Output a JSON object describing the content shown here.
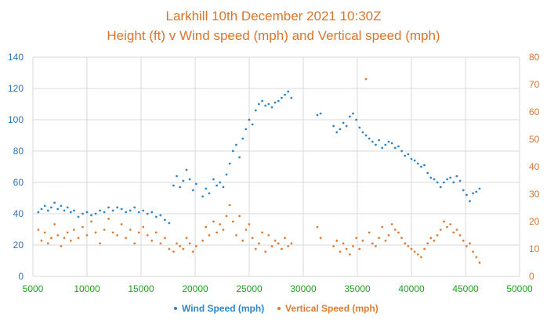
{
  "chart_data": {
    "type": "scatter",
    "title": "Larkhill 10th December 2021 10:30Z",
    "subtitle": "Height (ft) v Wind speed (mph) and Vertical speed (mph)",
    "xlabel": "",
    "ylabel": "",
    "y2label": "",
    "xlim": [
      5000,
      50000
    ],
    "ylim": [
      0,
      140
    ],
    "y2lim": [
      0,
      80
    ],
    "x_ticks": [
      5000,
      10000,
      15000,
      20000,
      25000,
      30000,
      35000,
      40000,
      45000,
      50000
    ],
    "y_ticks": [
      0,
      20,
      40,
      60,
      80,
      100,
      120,
      140
    ],
    "y2_ticks": [
      0,
      10,
      20,
      30,
      40,
      50,
      60,
      70,
      80
    ],
    "grid": true,
    "legend_position": "bottom",
    "series": [
      {
        "name": "Wind Speed (mph)",
        "axis": "left",
        "color": "#2E86C8",
        "points": [
          [
            5500,
            41
          ],
          [
            5800,
            43
          ],
          [
            6100,
            45
          ],
          [
            6400,
            42
          ],
          [
            6700,
            44
          ],
          [
            7000,
            47
          ],
          [
            7300,
            43
          ],
          [
            7600,
            45
          ],
          [
            7900,
            42
          ],
          [
            8200,
            44
          ],
          [
            8500,
            41
          ],
          [
            8800,
            42
          ],
          [
            9200,
            38
          ],
          [
            9600,
            40
          ],
          [
            10000,
            41
          ],
          [
            10400,
            39
          ],
          [
            10800,
            40
          ],
          [
            11200,
            42
          ],
          [
            11600,
            41
          ],
          [
            12000,
            44
          ],
          [
            12400,
            42
          ],
          [
            12800,
            44
          ],
          [
            13200,
            43
          ],
          [
            13600,
            41
          ],
          [
            14000,
            42
          ],
          [
            14400,
            44
          ],
          [
            14800,
            41
          ],
          [
            15200,
            42
          ],
          [
            15600,
            40
          ],
          [
            16000,
            41
          ],
          [
            16400,
            38
          ],
          [
            16800,
            39
          ],
          [
            17200,
            36
          ],
          [
            17600,
            34
          ],
          [
            18000,
            58
          ],
          [
            18300,
            64
          ],
          [
            18600,
            57
          ],
          [
            18900,
            61
          ],
          [
            19200,
            68
          ],
          [
            19500,
            62
          ],
          [
            19800,
            55
          ],
          [
            20100,
            59
          ],
          [
            20700,
            51
          ],
          [
            21000,
            56
          ],
          [
            21300,
            53
          ],
          [
            21700,
            62
          ],
          [
            22000,
            58
          ],
          [
            22300,
            60
          ],
          [
            22600,
            57
          ],
          [
            22900,
            65
          ],
          [
            23200,
            72
          ],
          [
            23500,
            80
          ],
          [
            23800,
            84
          ],
          [
            24100,
            76
          ],
          [
            24400,
            88
          ],
          [
            24700,
            94
          ],
          [
            25000,
            100
          ],
          [
            25300,
            97
          ],
          [
            25600,
            106
          ],
          [
            25900,
            110
          ],
          [
            26200,
            112
          ],
          [
            26500,
            109
          ],
          [
            26800,
            110
          ],
          [
            27100,
            108
          ],
          [
            27400,
            111
          ],
          [
            27700,
            112
          ],
          [
            28000,
            114
          ],
          [
            28300,
            116
          ],
          [
            28600,
            118
          ],
          [
            28900,
            114
          ],
          [
            31300,
            103
          ],
          [
            31600,
            104
          ],
          [
            32800,
            96
          ],
          [
            33100,
            92
          ],
          [
            33400,
            94
          ],
          [
            33700,
            98
          ],
          [
            34000,
            96
          ],
          [
            34300,
            102
          ],
          [
            34600,
            104
          ],
          [
            34900,
            100
          ],
          [
            35200,
            95
          ],
          [
            35500,
            92
          ],
          [
            35800,
            90
          ],
          [
            36100,
            88
          ],
          [
            36400,
            86
          ],
          [
            36700,
            84
          ],
          [
            37000,
            87
          ],
          [
            37300,
            82
          ],
          [
            37600,
            84
          ],
          [
            37900,
            86
          ],
          [
            38200,
            85
          ],
          [
            38500,
            82
          ],
          [
            38800,
            83
          ],
          [
            39100,
            80
          ],
          [
            39400,
            77
          ],
          [
            39700,
            78
          ],
          [
            40000,
            75
          ],
          [
            40300,
            74
          ],
          [
            40600,
            72
          ],
          [
            40900,
            70
          ],
          [
            41200,
            71
          ],
          [
            41500,
            66
          ],
          [
            41800,
            63
          ],
          [
            42100,
            62
          ],
          [
            42400,
            60
          ],
          [
            42700,
            57
          ],
          [
            43000,
            60
          ],
          [
            43300,
            62
          ],
          [
            43600,
            63
          ],
          [
            43900,
            60
          ],
          [
            44200,
            64
          ],
          [
            44500,
            61
          ],
          [
            44800,
            55
          ],
          [
            45100,
            52
          ],
          [
            45400,
            48
          ],
          [
            45700,
            53
          ],
          [
            46000,
            54
          ],
          [
            46300,
            56
          ]
        ]
      },
      {
        "name": "Vertical Speed (mph)",
        "axis": "right",
        "color": "#E07B30",
        "points": [
          [
            5500,
            17
          ],
          [
            5800,
            13
          ],
          [
            6100,
            16
          ],
          [
            6400,
            12
          ],
          [
            6700,
            14
          ],
          [
            7000,
            19
          ],
          [
            7300,
            15
          ],
          [
            7600,
            11
          ],
          [
            7900,
            14
          ],
          [
            8200,
            16
          ],
          [
            8500,
            13
          ],
          [
            8800,
            17
          ],
          [
            9200,
            14
          ],
          [
            9600,
            18
          ],
          [
            10000,
            15
          ],
          [
            10400,
            20
          ],
          [
            10800,
            16
          ],
          [
            11200,
            12
          ],
          [
            11600,
            17
          ],
          [
            12000,
            21
          ],
          [
            12400,
            16
          ],
          [
            12800,
            15
          ],
          [
            13200,
            19
          ],
          [
            13600,
            14
          ],
          [
            14000,
            17
          ],
          [
            14400,
            12
          ],
          [
            14800,
            16
          ],
          [
            15200,
            18
          ],
          [
            15600,
            15
          ],
          [
            16000,
            13
          ],
          [
            16400,
            16
          ],
          [
            16800,
            12
          ],
          [
            17200,
            14
          ],
          [
            17600,
            10
          ],
          [
            18000,
            9
          ],
          [
            18300,
            12
          ],
          [
            18600,
            11
          ],
          [
            18900,
            10
          ],
          [
            19200,
            14
          ],
          [
            19500,
            12
          ],
          [
            19800,
            9
          ],
          [
            20100,
            11
          ],
          [
            20700,
            13
          ],
          [
            21000,
            18
          ],
          [
            21300,
            15
          ],
          [
            21700,
            20
          ],
          [
            22000,
            16
          ],
          [
            22300,
            19
          ],
          [
            22600,
            17
          ],
          [
            22900,
            22
          ],
          [
            23200,
            26
          ],
          [
            23500,
            20
          ],
          [
            23800,
            15
          ],
          [
            24100,
            22
          ],
          [
            24400,
            13
          ],
          [
            24700,
            17
          ],
          [
            25000,
            19
          ],
          [
            25300,
            14
          ],
          [
            25600,
            10
          ],
          [
            25900,
            12
          ],
          [
            26200,
            16
          ],
          [
            26500,
            9
          ],
          [
            26800,
            15
          ],
          [
            27100,
            11
          ],
          [
            27400,
            13
          ],
          [
            27700,
            12
          ],
          [
            28000,
            10
          ],
          [
            28300,
            14
          ],
          [
            28600,
            11
          ],
          [
            28900,
            12
          ],
          [
            31300,
            18
          ],
          [
            31600,
            14
          ],
          [
            32800,
            11
          ],
          [
            33100,
            13
          ],
          [
            33400,
            9
          ],
          [
            33700,
            12
          ],
          [
            34000,
            10
          ],
          [
            34300,
            8
          ],
          [
            34600,
            11
          ],
          [
            34900,
            14
          ],
          [
            35200,
            10
          ],
          [
            35500,
            13
          ],
          [
            35800,
            72
          ],
          [
            36100,
            16
          ],
          [
            36400,
            12
          ],
          [
            36700,
            11
          ],
          [
            37000,
            14
          ],
          [
            37300,
            18
          ],
          [
            37600,
            13
          ],
          [
            37900,
            15
          ],
          [
            38200,
            19
          ],
          [
            38500,
            17
          ],
          [
            38800,
            16
          ],
          [
            39100,
            14
          ],
          [
            39400,
            12
          ],
          [
            39700,
            11
          ],
          [
            40000,
            10
          ],
          [
            40300,
            9
          ],
          [
            40600,
            8
          ],
          [
            40900,
            7
          ],
          [
            41200,
            10
          ],
          [
            41500,
            12
          ],
          [
            41800,
            14
          ],
          [
            42100,
            13
          ],
          [
            42400,
            15
          ],
          [
            42700,
            17
          ],
          [
            43000,
            20
          ],
          [
            43300,
            18
          ],
          [
            43600,
            19
          ],
          [
            43900,
            16
          ],
          [
            44200,
            17
          ],
          [
            44500,
            15
          ],
          [
            44800,
            13
          ],
          [
            45100,
            11
          ],
          [
            45400,
            12
          ],
          [
            45700,
            9
          ],
          [
            46000,
            7
          ],
          [
            46300,
            5
          ]
        ]
      }
    ]
  }
}
